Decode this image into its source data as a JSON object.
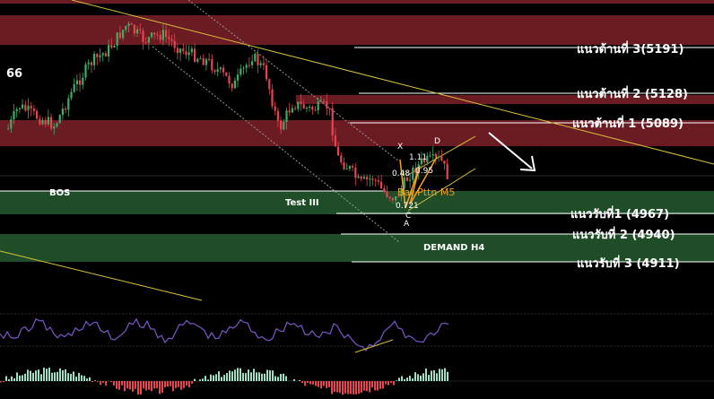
{
  "chart_data": {
    "type": "candlestick",
    "top_left_value": "66",
    "resistance_levels": [
      {
        "label": "แนวต้านที่ 3(5191)",
        "price": 5191
      },
      {
        "label": "แนวต้านที่ 2 (5128)",
        "price": 5128
      },
      {
        "label": "แนวต้านที่ 1 (5089)",
        "price": 5089
      }
    ],
    "support_levels": [
      {
        "label": "แนวรับที่1 (4967)",
        "price": 4967
      },
      {
        "label": "แนวรับที่ 2 (4940)",
        "price": 4940
      },
      {
        "label": "แนวรับที่ 3 (4911)",
        "price": 4911
      }
    ],
    "annotations": {
      "bos": "BOS",
      "test": "Test III",
      "demand": "DEMAND H4",
      "pattern": "Bat Pttn M5",
      "points": [
        "X",
        "D",
        "A",
        "C"
      ],
      "ratios": [
        "1.11",
        "0.95",
        "0.48",
        "0.721"
      ]
    },
    "colors": {
      "resistance_zone": "#6b1b22",
      "demand_zone": "#1e4d27",
      "candle_up": "#3cae66",
      "candle_down": "#e8434f",
      "trendline": "#d7c23d",
      "rsi_line": "#7b58c9",
      "macd_up": "#9fe0c4",
      "macd_down": "#e8434f"
    }
  }
}
